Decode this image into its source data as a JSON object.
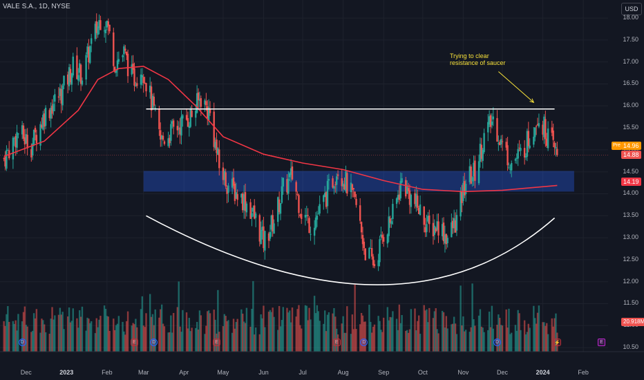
{
  "header": {
    "title": "VALE S.A., 1D, NYSE",
    "currency": "USD"
  },
  "annotation": "Trying to clear\nresistance of saucer",
  "price_axis": [
    "18.00",
    "17.50",
    "17.00",
    "16.50",
    "16.00",
    "15.50",
    "15.00",
    "14.50",
    "14.00",
    "13.50",
    "13.00",
    "12.50",
    "12.00",
    "11.50",
    "11.00",
    "10.50"
  ],
  "time_axis": [
    {
      "label": "Dec",
      "x": "2022-12-01",
      "year": false
    },
    {
      "label": "2023",
      "x": "2023-01-01",
      "year": true
    },
    {
      "label": "Feb",
      "x": "2023-02-01",
      "year": false
    },
    {
      "label": "Mar",
      "x": "2023-03-01",
      "year": false
    },
    {
      "label": "Apr",
      "x": "2023-04-01",
      "year": false
    },
    {
      "label": "May",
      "x": "2023-05-01",
      "year": false
    },
    {
      "label": "Jun",
      "x": "2023-06-01",
      "year": false
    },
    {
      "label": "Jul",
      "x": "2023-07-01",
      "year": false
    },
    {
      "label": "Aug",
      "x": "2023-08-01",
      "year": false
    },
    {
      "label": "Sep",
      "x": "2023-09-01",
      "year": false
    },
    {
      "label": "Oct",
      "x": "2023-10-01",
      "year": false
    },
    {
      "label": "Nov",
      "x": "2023-11-01",
      "year": false
    },
    {
      "label": "Dec",
      "x": "2023-12-01",
      "year": false
    },
    {
      "label": "2024",
      "x": "2024-01-01",
      "year": true
    },
    {
      "label": "Feb",
      "x": "2024-02-01",
      "year": false
    }
  ],
  "tags": {
    "pre_label": "Pre",
    "pre_price": "14.96",
    "last_price": "14.88",
    "ma_value": "14.19",
    "volume": "20.918M"
  },
  "colors": {
    "up": "#26a69a",
    "down": "#ef5350",
    "ma": "#f23645",
    "zone": "#2962ff",
    "annotation": "#f7e13a",
    "pre": "#ff9800",
    "background": "#131722"
  },
  "chart_data": {
    "type": "candlestick",
    "symbol": "VALE S.A.",
    "interval": "1D",
    "exchange": "NYSE",
    "currency": "USD",
    "ylim": [
      10.25,
      18.3
    ],
    "xlim": [
      "2022-11-11",
      "2024-02-20"
    ],
    "price_path": [
      [
        "2022-11-14",
        14.8
      ],
      [
        "2022-11-25",
        15.4
      ],
      [
        "2022-12-05",
        15.1
      ],
      [
        "2022-12-15",
        15.8
      ],
      [
        "2022-12-28",
        16.3
      ],
      [
        "2023-01-06",
        16.9
      ],
      [
        "2023-01-13",
        16.7
      ],
      [
        "2023-01-20",
        17.4
      ],
      [
        "2023-01-27",
        18.0
      ],
      [
        "2023-02-01",
        17.9
      ],
      [
        "2023-02-07",
        17.0
      ],
      [
        "2023-02-14",
        17.2
      ],
      [
        "2023-02-21",
        16.6
      ],
      [
        "2023-02-28",
        16.9
      ],
      [
        "2023-03-07",
        16.1
      ],
      [
        "2023-03-14",
        15.2
      ],
      [
        "2023-03-22",
        15.4
      ],
      [
        "2023-03-30",
        15.6
      ],
      [
        "2023-04-07",
        15.8
      ],
      [
        "2023-04-14",
        16.2
      ],
      [
        "2023-04-21",
        15.8
      ],
      [
        "2023-04-28",
        14.6
      ],
      [
        "2023-05-05",
        14.2
      ],
      [
        "2023-05-12",
        14.0
      ],
      [
        "2023-05-19",
        13.8
      ],
      [
        "2023-05-26",
        13.4
      ],
      [
        "2023-06-01",
        12.9
      ],
      [
        "2023-06-09",
        13.4
      ],
      [
        "2023-06-16",
        14.1
      ],
      [
        "2023-06-23",
        14.4
      ],
      [
        "2023-06-30",
        13.6
      ],
      [
        "2023-07-07",
        13.3
      ],
      [
        "2023-07-14",
        13.6
      ],
      [
        "2023-07-21",
        14.1
      ],
      [
        "2023-07-28",
        14.6
      ],
      [
        "2023-08-04",
        14.2
      ],
      [
        "2023-08-11",
        13.7
      ],
      [
        "2023-08-18",
        12.7
      ],
      [
        "2023-08-25",
        12.4
      ],
      [
        "2023-09-01",
        13.1
      ],
      [
        "2023-09-08",
        13.5
      ],
      [
        "2023-09-15",
        14.3
      ],
      [
        "2023-09-22",
        13.9
      ],
      [
        "2023-09-29",
        13.6
      ],
      [
        "2023-10-06",
        13.2
      ],
      [
        "2023-10-13",
        13.3
      ],
      [
        "2023-10-20",
        13.0
      ],
      [
        "2023-10-27",
        13.4
      ],
      [
        "2023-11-03",
        14.3
      ],
      [
        "2023-11-10",
        14.5
      ],
      [
        "2023-11-17",
        15.3
      ],
      [
        "2023-11-24",
        15.7
      ],
      [
        "2023-12-01",
        15.1
      ],
      [
        "2023-12-08",
        14.7
      ],
      [
        "2023-12-15",
        14.9
      ],
      [
        "2023-12-22",
        15.3
      ],
      [
        "2023-12-28",
        15.8
      ],
      [
        "2024-01-05",
        15.3
      ],
      [
        "2024-01-12",
        14.88
      ]
    ],
    "moving_average": [
      [
        "2022-11-14",
        14.85
      ],
      [
        "2022-12-15",
        15.2
      ],
      [
        "2023-01-10",
        15.9
      ],
      [
        "2023-01-25",
        16.6
      ],
      [
        "2023-02-10",
        16.85
      ],
      [
        "2023-03-01",
        16.9
      ],
      [
        "2023-03-20",
        16.6
      ],
      [
        "2023-04-10",
        16.0
      ],
      [
        "2023-05-01",
        15.3
      ],
      [
        "2023-06-01",
        14.9
      ],
      [
        "2023-07-01",
        14.7
      ],
      [
        "2023-08-01",
        14.55
      ],
      [
        "2023-09-01",
        14.3
      ],
      [
        "2023-10-01",
        14.1
      ],
      [
        "2023-11-01",
        14.05
      ],
      [
        "2023-12-01",
        14.08
      ],
      [
        "2024-01-12",
        14.19
      ]
    ],
    "resistance_line": {
      "price": 15.93,
      "from": "2023-03-03",
      "to": "2024-01-10"
    },
    "support_zone": {
      "low": 14.05,
      "high": 14.52
    },
    "saucer_curve": {
      "start": [
        "2023-03-03",
        13.5
      ],
      "bottom": [
        "2023-08-26",
        11.93
      ],
      "end": [
        "2024-01-10",
        13.45
      ]
    },
    "annotation_arrow": {
      "from": [
        "2023-11-28",
        16.78
      ],
      "to": [
        "2023-12-25",
        16.08
      ]
    },
    "last_price": 14.88,
    "pre_market_price": 14.96,
    "ma_last": 14.19,
    "last_volume": "20.918M",
    "volume_scale_max": "40M",
    "events": [
      {
        "date": "2022-11-28",
        "type": "dividend",
        "label": "D"
      },
      {
        "date": "2023-02-22",
        "type": "earnings",
        "label": "E"
      },
      {
        "date": "2023-03-09",
        "type": "dividend",
        "label": "D"
      },
      {
        "date": "2023-04-26",
        "type": "earnings",
        "label": "E"
      },
      {
        "date": "2023-07-27",
        "type": "earnings",
        "label": "E"
      },
      {
        "date": "2023-08-17",
        "type": "dividend",
        "label": "D"
      },
      {
        "date": "2023-11-27",
        "type": "dividend",
        "label": "D"
      },
      {
        "date": "2024-01-12",
        "type": "split",
        "label": "⚡"
      },
      {
        "date": "2024-02-15",
        "type": "earnings-upcoming",
        "label": "E"
      }
    ]
  }
}
